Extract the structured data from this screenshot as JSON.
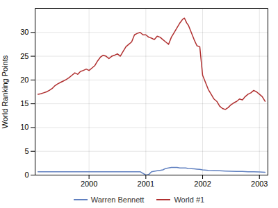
{
  "chart_data": {
    "type": "line",
    "ylabel": "World Ranking Points",
    "xlim": [
      1999.05,
      2003.15
    ],
    "xticks": [
      2000,
      2001,
      2002,
      2003
    ],
    "ylim": [
      0,
      35
    ],
    "yticks": [
      0,
      5,
      10,
      15,
      20,
      25,
      30
    ],
    "grid": true,
    "legend": "bottom",
    "series": [
      {
        "name": "Warren Bennett",
        "color": "#6080c0",
        "x": [
          1999.1,
          1999.2,
          1999.3,
          1999.4,
          1999.5,
          1999.6,
          1999.7,
          1999.8,
          1999.9,
          2000.0,
          2000.1,
          2000.2,
          2000.3,
          2000.4,
          2000.5,
          2000.6,
          2000.7,
          2000.8,
          2000.9,
          2001.0,
          2001.05,
          2001.1,
          2001.15,
          2001.2,
          2001.25,
          2001.3,
          2001.35,
          2001.4,
          2001.45,
          2001.5,
          2001.55,
          2001.6,
          2001.65,
          2001.7,
          2001.75,
          2001.8,
          2001.85,
          2001.9,
          2001.95,
          2002.0,
          2002.1,
          2002.2,
          2002.3,
          2002.4,
          2002.5,
          2002.6,
          2002.7,
          2002.8,
          2002.9,
          2003.0,
          2003.1
        ],
        "values": [
          0.7,
          0.7,
          0.7,
          0.7,
          0.7,
          0.7,
          0.7,
          0.7,
          0.7,
          0.7,
          0.7,
          0.7,
          0.7,
          0.7,
          0.7,
          0.7,
          0.7,
          0.7,
          0.7,
          0.0,
          0.1,
          0.7,
          0.8,
          0.9,
          1.0,
          1.1,
          1.4,
          1.5,
          1.6,
          1.6,
          1.6,
          1.5,
          1.5,
          1.5,
          1.4,
          1.35,
          1.3,
          1.25,
          1.2,
          1.1,
          1.0,
          0.95,
          0.9,
          0.85,
          0.8,
          0.75,
          0.75,
          0.7,
          0.7,
          0.65,
          0.6
        ]
      },
      {
        "name": "World #1",
        "color": "#b03030",
        "x": [
          1999.1,
          1999.15,
          1999.2,
          1999.25,
          1999.3,
          1999.35,
          1999.4,
          1999.45,
          1999.5,
          1999.55,
          1999.6,
          1999.65,
          1999.7,
          1999.75,
          1999.8,
          1999.85,
          1999.9,
          1999.95,
          2000.0,
          2000.05,
          2000.1,
          2000.15,
          2000.2,
          2000.25,
          2000.3,
          2000.35,
          2000.4,
          2000.45,
          2000.5,
          2000.55,
          2000.6,
          2000.65,
          2000.7,
          2000.75,
          2000.8,
          2000.85,
          2000.9,
          2000.95,
          2001.0,
          2001.05,
          2001.1,
          2001.15,
          2001.2,
          2001.25,
          2001.3,
          2001.35,
          2001.4,
          2001.45,
          2001.5,
          2001.55,
          2001.6,
          2001.62,
          2001.65,
          2001.68,
          2001.7,
          2001.72,
          2001.75,
          2001.8,
          2001.85,
          2001.9,
          2001.95,
          2002.0,
          2002.05,
          2002.1,
          2002.15,
          2002.2,
          2002.25,
          2002.3,
          2002.35,
          2002.4,
          2002.45,
          2002.5,
          2002.55,
          2002.6,
          2002.65,
          2002.7,
          2002.75,
          2002.8,
          2002.85,
          2002.9,
          2002.95,
          2003.0,
          2003.05,
          2003.1
        ],
        "values": [
          17.0,
          17.1,
          17.3,
          17.5,
          17.8,
          18.2,
          18.8,
          19.2,
          19.5,
          19.8,
          20.1,
          20.5,
          21.0,
          21.5,
          21.2,
          21.8,
          22.0,
          22.3,
          22.0,
          22.5,
          23.0,
          24.0,
          24.8,
          25.2,
          25.0,
          24.5,
          25.0,
          25.2,
          25.5,
          25.0,
          26.0,
          27.0,
          27.5,
          28.0,
          29.5,
          29.8,
          30.0,
          29.5,
          29.5,
          29.0,
          28.8,
          28.5,
          29.2,
          29.0,
          28.5,
          28.0,
          27.5,
          29.0,
          30.0,
          31.0,
          32.0,
          32.3,
          32.8,
          33.0,
          32.5,
          32.0,
          31.5,
          30.0,
          28.5,
          27.2,
          27.0,
          21.0,
          19.5,
          18.0,
          17.0,
          16.0,
          15.5,
          14.5,
          14.0,
          13.8,
          14.2,
          14.8,
          15.2,
          15.5,
          16.0,
          15.8,
          16.5,
          17.0,
          17.3,
          17.8,
          17.5,
          17.0,
          16.5,
          15.5
        ]
      }
    ]
  }
}
